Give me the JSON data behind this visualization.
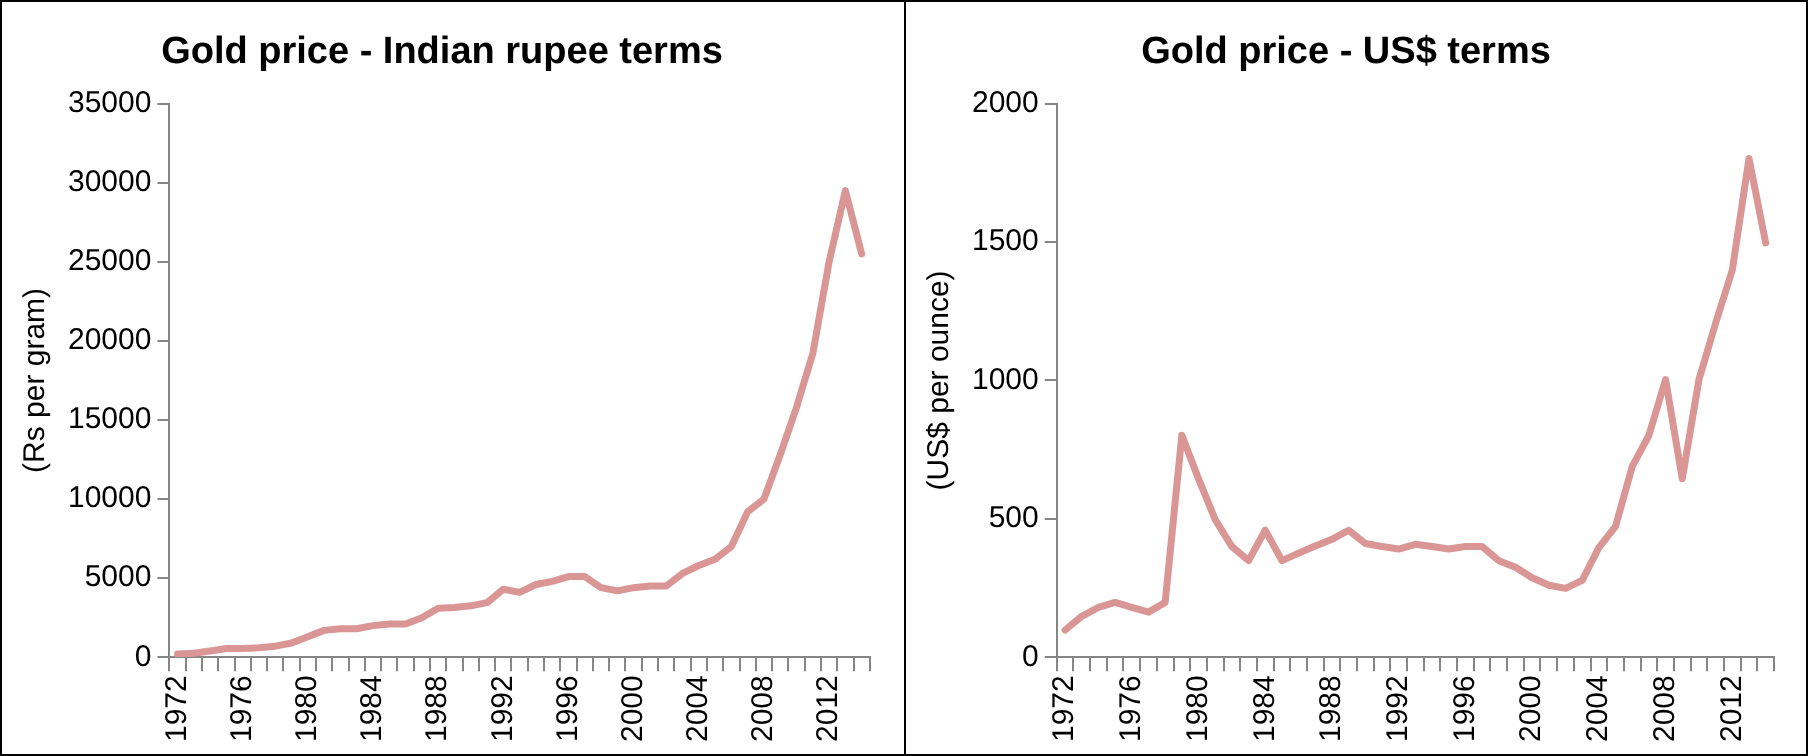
{
  "chart_data": [
    {
      "type": "line",
      "title": "Gold price - Indian rupee terms",
      "ylabel": "(Rs per gram)",
      "categories": [
        "1972",
        null,
        null,
        null,
        "1976",
        null,
        null,
        null,
        "1980",
        null,
        null,
        null,
        "1984",
        null,
        null,
        null,
        "1988",
        null,
        null,
        null,
        "1992",
        null,
        null,
        null,
        "1996",
        null,
        null,
        null,
        "2000",
        null,
        null,
        null,
        "2004",
        null,
        null,
        null,
        "2008",
        null,
        null,
        null,
        "2012",
        null,
        null
      ],
      "series": [
        {
          "color": "#d99694",
          "values": [
            200,
            250,
            400,
            550,
            550,
            600,
            700,
            900,
            1300,
            1700,
            1800,
            1800,
            2000,
            2100,
            2100,
            2500,
            3100,
            3150,
            3250,
            3450,
            4300,
            4100,
            4600,
            4800,
            5100,
            5100,
            4400,
            4200,
            4400,
            4500,
            4500,
            5300,
            5800,
            6200,
            7000,
            9200,
            10000,
            12800,
            15800,
            19200,
            25000,
            29500,
            25500
          ]
        }
      ],
      "ylim": [
        0,
        35000
      ],
      "yticks": [
        0,
        5000,
        10000,
        15000,
        20000,
        25000,
        30000,
        35000
      ],
      "grid": false,
      "legend": false,
      "marker": "none",
      "line_style": "solid"
    },
    {
      "type": "line",
      "title": "Gold price - US$ terms",
      "ylabel": "(US$ per ounce)",
      "categories": [
        "1972",
        null,
        null,
        null,
        "1976",
        null,
        null,
        null,
        "1980",
        null,
        null,
        null,
        "1984",
        null,
        null,
        null,
        "1988",
        null,
        null,
        null,
        "1992",
        null,
        null,
        null,
        "1996",
        null,
        null,
        null,
        "2000",
        null,
        null,
        null,
        "2004",
        null,
        null,
        null,
        "2008",
        null,
        null,
        null,
        "2012",
        null,
        null
      ],
      "series": [
        {
          "color": "#d99694",
          "values": [
            98,
            148,
            180,
            198,
            180,
            163,
            198,
            802,
            645,
            497,
            400,
            349,
            459,
            349,
            376,
            402,
            426,
            459,
            411,
            400,
            391,
            408,
            400,
            391,
            400,
            400,
            349,
            325,
            287,
            260,
            249,
            278,
            396,
            473,
            689,
            802,
            1003,
            645,
            1003,
            1207,
            1399,
            1802,
            1497
          ]
        }
      ],
      "ylim": [
        0,
        2000
      ],
      "yticks": [
        0,
        500,
        1000,
        1500,
        2000
      ],
      "grid": false,
      "legend": false,
      "marker": "none",
      "line_style": "solid"
    }
  ]
}
